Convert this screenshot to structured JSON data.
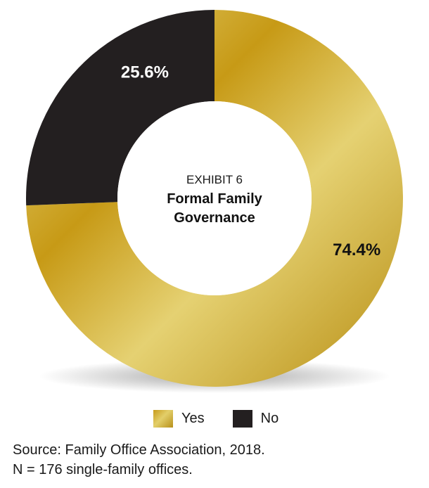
{
  "chart_data": {
    "type": "pie",
    "title": "Formal Family Governance",
    "subtitle": "EXHIBIT 6",
    "categories": [
      "Yes",
      "No"
    ],
    "values": [
      74.4,
      25.6
    ],
    "value_labels": [
      "74.4%",
      "25.6%"
    ],
    "donut": true,
    "legend": "bottom",
    "colors": {
      "Yes": "#d1a82a",
      "No": "#231f20"
    }
  },
  "legend": {
    "yes_label": "Yes",
    "no_label": "No"
  },
  "source": {
    "line1": "Source: Family Office Association, 2018.",
    "line2": "N = 176 single-family offices."
  }
}
